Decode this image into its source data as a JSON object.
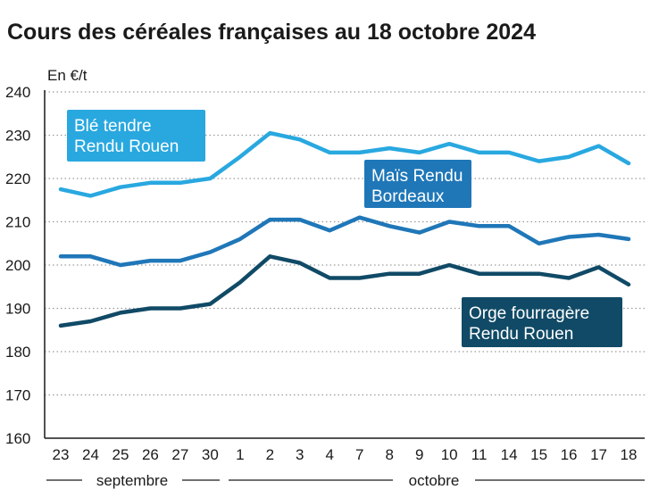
{
  "title": "Cours des céréales françaises au 18 octobre 2024",
  "colors": {
    "ble": "#29a8e0",
    "mais": "#1f77b8",
    "orge": "#104a66",
    "grid": "#9a9a9a",
    "axis": "#1a1a1a",
    "text": "#1a1a1a"
  },
  "chart_data": {
    "type": "line",
    "ylabel": "En €/t",
    "ylim": [
      160,
      240
    ],
    "yticks": [
      160,
      170,
      180,
      190,
      200,
      210,
      220,
      230,
      240
    ],
    "grid": true,
    "categories": [
      "23",
      "24",
      "25",
      "26",
      "27",
      "30",
      "1",
      "2",
      "3",
      "4",
      "7",
      "8",
      "9",
      "10",
      "11",
      "14",
      "15",
      "16",
      "17",
      "18"
    ],
    "month_groups": [
      {
        "label": "septembre",
        "from": 0,
        "to": 5
      },
      {
        "label": "octobre",
        "from": 6,
        "to": 19
      }
    ],
    "series": [
      {
        "key": "ble",
        "name": "Blé tendre Rendu Rouen",
        "label_lines": [
          "Blé tendre",
          "Rendu Rouen"
        ],
        "color": "#29a8e0",
        "values": [
          217.5,
          216,
          218,
          219,
          219,
          220,
          225,
          230.5,
          229,
          226,
          226,
          227,
          226,
          228,
          226,
          226,
          224,
          225,
          227.5,
          223.5
        ]
      },
      {
        "key": "mais",
        "name": "Maïs Rendu Bordeaux",
        "label_lines": [
          "Maïs Rendu",
          "Bordeaux"
        ],
        "color": "#1f77b8",
        "values": [
          202,
          202,
          200,
          201,
          201,
          203,
          206,
          210.5,
          210.5,
          208,
          211,
          209,
          207.5,
          210,
          209,
          209,
          205,
          206.5,
          207,
          206
        ]
      },
      {
        "key": "orge",
        "name": "Orge fourragère Rendu Rouen",
        "label_lines": [
          "Orge fourragère",
          "Rendu Rouen"
        ],
        "color": "#104a66",
        "values": [
          186,
          187,
          189,
          190,
          190,
          191,
          196,
          202,
          200.5,
          197,
          197,
          198,
          198,
          200,
          198,
          198,
          198,
          197,
          199.5,
          195.5
        ]
      }
    ]
  }
}
